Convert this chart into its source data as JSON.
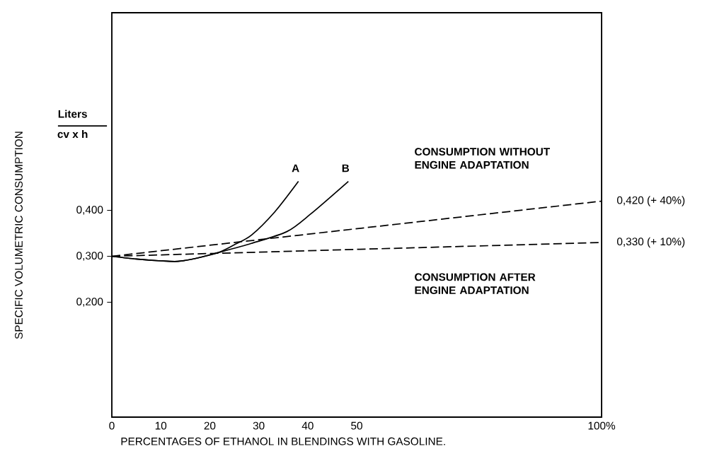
{
  "chart_data": {
    "type": "line",
    "xlabel": "PERCENTAGES OF ETHANOL IN BLENDINGS WITH GASOLINE.",
    "ylabel": "SPECIFIC VOLUMETRIC CONSUMPTION",
    "xlim": [
      0,
      100
    ],
    "ylim": [
      -0.05,
      0.83
    ],
    "xticks": [
      0,
      10,
      20,
      30,
      40,
      50,
      {
        "value": 100,
        "label": "100%"
      }
    ],
    "yticks": [
      {
        "value": 0.2,
        "label": "0,200"
      },
      {
        "value": 0.3,
        "label": "0,300"
      },
      {
        "value": 0.4,
        "label": "0,400"
      }
    ],
    "series": [
      {
        "name": "A",
        "color": "#000000",
        "line_style": "solid",
        "x": [
          0,
          5,
          10,
          13.5,
          17,
          21.7,
          25,
          28.5,
          33.3,
          38.1
        ],
        "values": [
          0.3,
          0.294,
          0.29,
          0.289,
          0.295,
          0.308,
          0.325,
          0.346,
          0.397,
          0.463
        ]
      },
      {
        "name": "B",
        "color": "#000000",
        "line_style": "solid",
        "x": [
          0,
          5,
          10,
          13.5,
          17,
          21.7,
          28.5,
          35.8,
          40.6,
          48.3
        ],
        "values": [
          0.3,
          0.294,
          0.29,
          0.289,
          0.295,
          0.308,
          0.328,
          0.354,
          0.392,
          0.463
        ]
      },
      {
        "color": "#000000",
        "line_style": "dashed",
        "x": [
          0,
          100
        ],
        "values": [
          0.3,
          0.42
        ]
      },
      {
        "color": "#000000",
        "line_style": "dashed",
        "x": [
          0,
          100
        ],
        "values": [
          0.3,
          0.33
        ]
      }
    ],
    "annotations": [
      "CONSUMPTION WITHOUT ENGINE ADAPTATION",
      "CONSUMPTION AFTER ENGINE ADAPTATION",
      {
        "text": "0,420 (+ 40%)",
        "x": 100,
        "y": 0.42
      },
      {
        "text": "0,330 (+ 10%)",
        "x": 100,
        "y": 0.33
      },
      "Liters",
      "cv x h"
    ],
    "grid": false,
    "legend": false
  }
}
